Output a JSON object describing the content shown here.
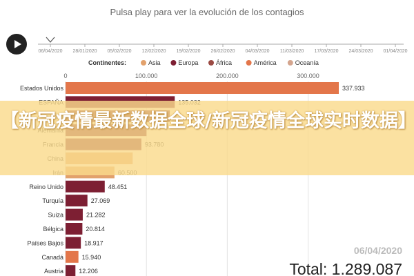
{
  "page": {
    "title": "Pulsa play para ver la evolución de los contagios",
    "banner": "【新冠疫情最新数据全球/新冠疫情全球实时数据】"
  },
  "colors": {
    "asia": "#e2a16c",
    "europe": "#7d1f33",
    "africa": "#9b4a43",
    "america": "#e3764a",
    "oceania": "#d4a58e"
  },
  "chart_data": {
    "type": "bar",
    "timeline": [
      "06/04/2020",
      "28/01/2020",
      "05/02/2020",
      "12/02/2020",
      "19/02/2020",
      "26/02/2020",
      "04/03/2020",
      "11/03/2020",
      "17/03/2020",
      "24/03/2020",
      "01/04/2020"
    ],
    "legend_title": "Continentes:",
    "legend": [
      {
        "name": "Asia",
        "color": "#e2a16c"
      },
      {
        "name": "Europa",
        "color": "#7d1f33"
      },
      {
        "name": "África",
        "color": "#9b4a43"
      },
      {
        "name": "América",
        "color": "#e3764a"
      },
      {
        "name": "Oceanía",
        "color": "#d4a58e"
      }
    ],
    "xlim": [
      0,
      337933
    ],
    "xticks": [
      {
        "value": 0,
        "label": "0"
      },
      {
        "value": 100000,
        "label": "100.000"
      },
      {
        "value": 200000,
        "label": "200.000"
      },
      {
        "value": 300000,
        "label": "300.000"
      }
    ],
    "categories": [
      "Estados Unidos",
      "ESPAÑA",
      "Italia",
      "Alemania",
      "Francia",
      "China",
      "Irán",
      "Reino Unido",
      "Turquía",
      "Suiza",
      "Bélgica",
      "Países Bajos",
      "Canadá",
      "Austria"
    ],
    "values": [
      337933,
      135032,
      128948,
      100123,
      93780,
      83000,
      60500,
      48451,
      27069,
      21282,
      20814,
      18917,
      15940,
      12206
    ],
    "value_labels": [
      "337.933",
      "135.032",
      "",
      "",
      "93.780",
      "",
      "60.500",
      "48.451",
      "27.069",
      "21.282",
      "20.814",
      "18.917",
      "15.940",
      "12.206"
    ],
    "continents": [
      "america",
      "europe",
      "europe",
      "europe",
      "europe",
      "asia",
      "asia",
      "europe",
      "europe",
      "europe",
      "europe",
      "europe",
      "america",
      "europe"
    ],
    "date": "06/04/2020",
    "total": "Total: 1.289.087"
  }
}
